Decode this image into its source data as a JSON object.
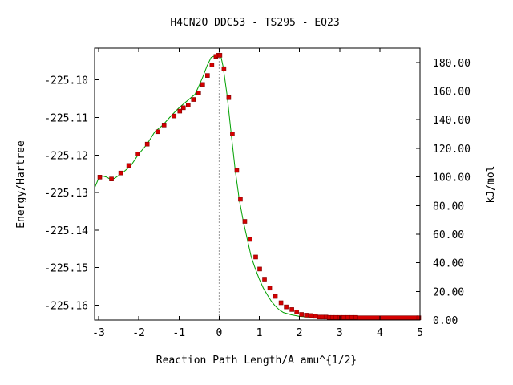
{
  "chart_data": {
    "type": "line",
    "title": "H4CN2O   DDC53 - TS295 - EQ23",
    "xlabel": "Reaction Path Length/A amu^{1/2}",
    "ylabel": "Energy/Hartree",
    "y2label": "kJ/mol",
    "xlim": [
      -3.1,
      5.0
    ],
    "ylim": [
      -225.164,
      -225.0915
    ],
    "y2lim": [
      0.0,
      190.0
    ],
    "x_ticks": [
      "-3",
      "-2",
      "-1",
      "0",
      "1",
      "2",
      "3",
      "4",
      "5"
    ],
    "y_ticks": [
      "-225.10",
      "-225.11",
      "-225.12",
      "-225.13",
      "-225.14",
      "-225.15",
      "-225.16"
    ],
    "y2_ticks": [
      "0.00",
      "20.00",
      "40.00",
      "60.00",
      "80.00",
      "100.00",
      "120.00",
      "140.00",
      "160.00",
      "180.00"
    ],
    "ts_marker_x": 0.0,
    "grid": false,
    "colors": {
      "curve": "#00a000",
      "points": "#d40000",
      "point_edge": "#800000",
      "ts_line": "#999999"
    },
    "series": [
      {
        "curve": [
          [
            -3.1,
            -225.1288
          ],
          [
            -3.0,
            -225.1262
          ],
          [
            -2.9,
            -225.1256
          ],
          [
            -2.8,
            -225.1259
          ],
          [
            -2.7,
            -225.1265
          ],
          [
            -2.6,
            -225.1262
          ],
          [
            -2.4,
            -225.1247
          ],
          [
            -2.2,
            -225.1229
          ],
          [
            -2.0,
            -225.1197
          ],
          [
            -1.8,
            -225.1172
          ],
          [
            -1.6,
            -225.1138
          ],
          [
            -1.4,
            -225.112
          ],
          [
            -1.2,
            -225.1096
          ],
          [
            -1.0,
            -225.1074
          ],
          [
            -0.8,
            -225.1056
          ],
          [
            -0.6,
            -225.1038
          ],
          [
            -0.5,
            -225.1015
          ],
          [
            -0.4,
            -225.099
          ],
          [
            -0.3,
            -225.0962
          ],
          [
            -0.2,
            -225.094
          ],
          [
            -0.1,
            -225.0935
          ],
          [
            0.0,
            -225.0935
          ],
          [
            0.05,
            -225.094
          ],
          [
            0.1,
            -225.0965
          ],
          [
            0.2,
            -225.1042
          ],
          [
            0.3,
            -225.1143
          ],
          [
            0.4,
            -225.124
          ],
          [
            0.5,
            -225.1318
          ],
          [
            0.6,
            -225.1376
          ],
          [
            0.7,
            -225.1424
          ],
          [
            0.8,
            -225.1472
          ],
          [
            0.9,
            -225.1503
          ],
          [
            1.0,
            -225.1531
          ],
          [
            1.1,
            -225.1555
          ],
          [
            1.2,
            -225.1573
          ],
          [
            1.3,
            -225.159
          ],
          [
            1.4,
            -225.1603
          ],
          [
            1.5,
            -225.1613
          ],
          [
            1.6,
            -225.162
          ],
          [
            1.8,
            -225.1626
          ],
          [
            2.0,
            -225.163
          ],
          [
            2.2,
            -225.1632
          ],
          [
            2.5,
            -225.1633
          ],
          [
            3.0,
            -225.1633
          ],
          [
            3.5,
            -225.1634
          ],
          [
            4.0,
            -225.1634
          ],
          [
            4.5,
            -225.1634
          ],
          [
            5.0,
            -225.1634
          ]
        ],
        "points": [
          [
            -2.97,
            -225.1259
          ],
          [
            -2.68,
            -225.1264
          ],
          [
            -2.45,
            -225.1248
          ],
          [
            -2.25,
            -225.1228
          ],
          [
            -2.02,
            -225.1197
          ],
          [
            -1.79,
            -225.1171
          ],
          [
            -1.53,
            -225.1138
          ],
          [
            -1.37,
            -225.112
          ],
          [
            -1.12,
            -225.1096
          ],
          [
            -0.98,
            -225.1083
          ],
          [
            -0.89,
            -225.1074
          ],
          [
            -0.77,
            -225.1067
          ],
          [
            -0.64,
            -225.1052
          ],
          [
            -0.51,
            -225.1035
          ],
          [
            -0.41,
            -225.1012
          ],
          [
            -0.29,
            -225.0988
          ],
          [
            -0.18,
            -225.096
          ],
          [
            -0.08,
            -225.0937
          ],
          [
            -0.03,
            -225.0934
          ],
          [
            0.02,
            -225.0934
          ],
          [
            0.12,
            -225.097
          ],
          [
            0.24,
            -225.1047
          ],
          [
            0.33,
            -225.1144
          ],
          [
            0.44,
            -225.1241
          ],
          [
            0.53,
            -225.1318
          ],
          [
            0.64,
            -225.1377
          ],
          [
            0.77,
            -225.1425
          ],
          [
            0.91,
            -225.1472
          ],
          [
            1.01,
            -225.1504
          ],
          [
            1.13,
            -225.1531
          ],
          [
            1.26,
            -225.1555
          ],
          [
            1.4,
            -225.1577
          ],
          [
            1.54,
            -225.1594
          ],
          [
            1.67,
            -225.1605
          ],
          [
            1.81,
            -225.1612
          ],
          [
            1.93,
            -225.1619
          ],
          [
            2.05,
            -225.1625
          ],
          [
            2.17,
            -225.1627
          ],
          [
            2.29,
            -225.1628
          ],
          [
            2.4,
            -225.163
          ],
          [
            2.5,
            -225.1632
          ],
          [
            2.58,
            -225.1632
          ],
          [
            2.66,
            -225.1632
          ],
          [
            2.74,
            -225.1633
          ],
          [
            2.82,
            -225.1633
          ],
          [
            2.9,
            -225.1633
          ],
          [
            3.0,
            -225.1633
          ],
          [
            3.1,
            -225.1633
          ],
          [
            3.2,
            -225.1633
          ],
          [
            3.3,
            -225.1633
          ],
          [
            3.4,
            -225.1633
          ],
          [
            3.5,
            -225.1634
          ],
          [
            3.6,
            -225.1634
          ],
          [
            3.7,
            -225.1634
          ],
          [
            3.8,
            -225.1634
          ],
          [
            3.9,
            -225.1634
          ],
          [
            4.0,
            -225.1634
          ],
          [
            4.1,
            -225.1634
          ],
          [
            4.2,
            -225.1634
          ],
          [
            4.3,
            -225.1634
          ],
          [
            4.4,
            -225.1634
          ],
          [
            4.5,
            -225.1634
          ],
          [
            4.6,
            -225.1634
          ],
          [
            4.7,
            -225.1634
          ],
          [
            4.8,
            -225.1634
          ],
          [
            4.9,
            -225.1634
          ],
          [
            4.97,
            -225.1634
          ]
        ]
      }
    ]
  }
}
